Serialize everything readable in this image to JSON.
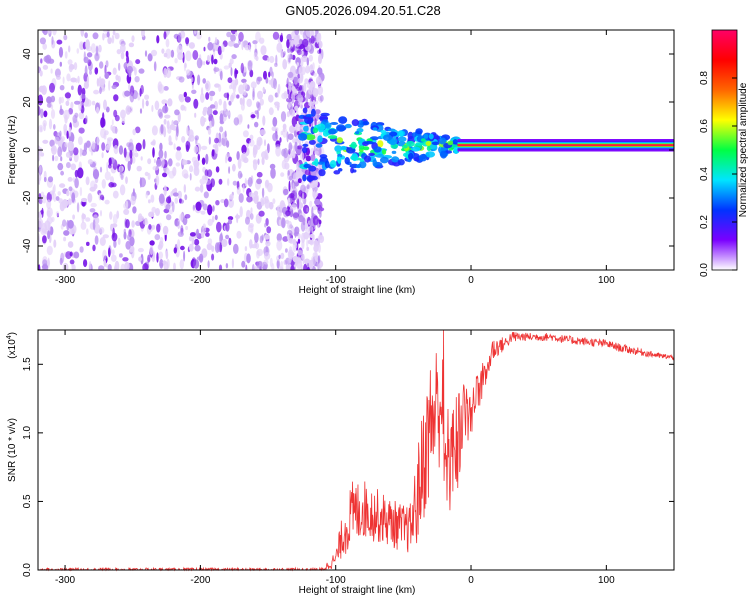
{
  "title": "GN05.2026.094.20.51.C28",
  "chart_data": [
    {
      "type": "heatmap",
      "xlabel": "Height of straight line (km)",
      "ylabel": "Frequency (Hz)",
      "xlim": [
        -320,
        150
      ],
      "ylim": [
        -50,
        50
      ],
      "xticks": [
        -300,
        -200,
        -100,
        0,
        100
      ],
      "xtick_labels": [
        "-300",
        "-200",
        "-100",
        "0",
        "100"
      ],
      "yticks": [
        -40,
        -20,
        0,
        20,
        40
      ],
      "ytick_labels": [
        "-40",
        "-20",
        "0",
        "20",
        "40"
      ],
      "noise_region_x": [
        -320,
        -125
      ],
      "transition_region_x": [
        -125,
        -10
      ],
      "signal_line": {
        "x_range": [
          -10,
          150
        ],
        "frequency_hz": 2,
        "peak_normalized_amplitude": 1.0
      },
      "transition_blob_amplitude_range": [
        0.2,
        0.65
      ],
      "colorbar": {
        "label": "Normalized spectral amplitude",
        "range": [
          0,
          1
        ],
        "ticks": [
          0.0,
          0.2,
          0.4,
          0.6,
          0.8
        ],
        "tick_labels": [
          "0.0",
          "0.2",
          "0.4",
          "0.6",
          "0.8"
        ],
        "colors": [
          "#ffffff",
          "#7a00ff",
          "#0033ff",
          "#00e5ff",
          "#00ff44",
          "#ffff00",
          "#ff6600",
          "#ff0000",
          "#ff0066"
        ]
      }
    },
    {
      "type": "line",
      "xlabel": "Height of straight line (km)",
      "ylabel": "SNR (10 * v/v)",
      "y_multiplier_label": "(x10",
      "y_multiplier_exp": "4",
      "y_multiplier_close": ")",
      "xlim": [
        -320,
        150
      ],
      "ylim": [
        0,
        17500
      ],
      "xticks": [
        -300,
        -200,
        -100,
        0,
        100
      ],
      "xtick_labels": [
        "-300",
        "-200",
        "-100",
        "0",
        "100"
      ],
      "yticks": [
        0,
        5000,
        10000,
        15000
      ],
      "ytick_labels": [
        "0.0",
        "0.5",
        "1.0",
        "1.5"
      ],
      "series": [
        {
          "name": "SNR",
          "color": "#ee3333",
          "envelope": {
            "x": [
              -320,
              -110,
              -100,
              -95,
              -88,
              -80,
              -70,
              -60,
              -50,
              -45,
              -40,
              -35,
              -30,
              -25,
              -20,
              -15,
              -10,
              -5,
              0,
              5,
              10,
              15,
              20,
              25,
              30,
              35,
              40,
              50,
              60,
              70,
              80,
              90,
              100,
              110,
              120,
              130,
              140,
              150
            ],
            "y": [
              0,
              0,
              800,
              2500,
              4000,
              4500,
              4000,
              3500,
              3000,
              3000,
              5000,
              8000,
              10500,
              12000,
              13000,
              12000,
              13500,
              14000,
              13500,
              14500,
              15500,
              16000,
              16300,
              16500,
              17000,
              17000,
              17000,
              17000,
              17000,
              16800,
              16700,
              16600,
              16500,
              16200,
              16000,
              15800,
              15600,
              15500
            ],
            "noise": [
              150,
              150,
              600,
              1600,
              2500,
              2200,
              2000,
              1800,
              1800,
              1800,
              3500,
              4500,
              5000,
              5000,
              5000,
              5000,
              5000,
              3000,
              2500,
              2000,
              1500,
              1000,
              700,
              500,
              400,
              400,
              300,
              300,
              300,
              300,
              300,
              300,
              300,
              300,
              300,
              250,
              200,
              200
            ]
          }
        }
      ]
    }
  ]
}
